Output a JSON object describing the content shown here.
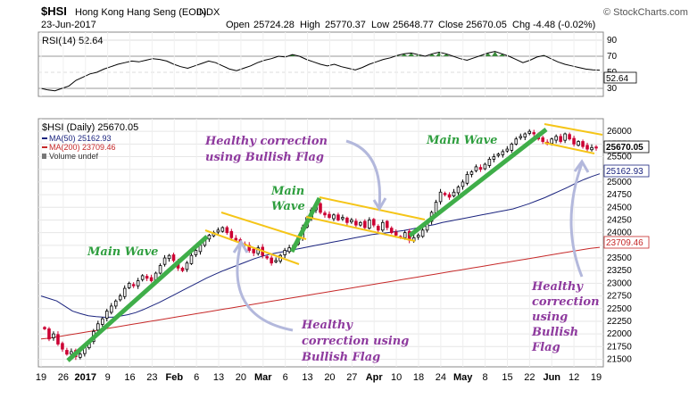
{
  "header": {
    "symbol": "$HSI",
    "name": "Hong Kong Hang Seng (EOD)",
    "exchange": "INDX",
    "source": "© StockCharts.com",
    "date": "23-Jun-2017",
    "open_label": "Open",
    "open": "25724.28",
    "high_label": "High",
    "high": "25770.37",
    "low_label": "Low",
    "low": "25648.77",
    "close_label": "Close",
    "close": "25670.05",
    "chg_label": "Chg",
    "chg": "-4.48 (-0.02%)"
  },
  "rsi_panel": {
    "legend": "RSI(14) 52.64",
    "value": 52.64,
    "value_label": "52.64",
    "ylim": [
      20,
      100
    ],
    "ticks": [
      30,
      50,
      70,
      90
    ],
    "tick_labels": [
      "30",
      "50",
      "70",
      "90"
    ],
    "values": [
      30,
      28,
      27,
      30,
      33,
      40,
      44,
      48,
      50,
      54,
      57,
      60,
      62,
      64,
      63,
      65,
      67,
      66,
      64,
      60,
      57,
      55,
      58,
      61,
      64,
      62,
      58,
      54,
      52,
      55,
      58,
      62,
      65,
      67,
      70,
      69,
      72,
      70,
      66,
      63,
      60,
      58,
      60,
      57,
      55,
      53,
      56,
      60,
      63,
      66,
      68,
      71,
      73,
      74,
      72,
      70,
      73,
      75,
      73,
      70,
      67,
      65,
      68,
      71,
      74,
      76,
      73,
      70,
      66,
      62,
      65,
      69,
      71,
      67,
      63,
      60,
      58,
      56,
      54,
      53,
      52.64
    ],
    "colors": {
      "line": "#000000",
      "overbought_fill": "#3a8a3a"
    }
  },
  "price_panel": {
    "legend_main": "$HSI (Daily) 25670.05",
    "legend_ma50": "MA(50) 25162.93",
    "legend_ma200": "MA(200) 23709.46",
    "legend_volume": "Volume undef",
    "ylim": [
      21350,
      26250
    ],
    "tick_values": [
      21500,
      21750,
      22000,
      22250,
      22500,
      22750,
      23000,
      23250,
      23500,
      23750,
      24000,
      24250,
      24500,
      24750,
      25000,
      25250,
      25500,
      25750,
      26000
    ],
    "tick_labels": [
      "21500",
      "21750",
      "22000",
      "22250",
      "22500",
      "22750",
      "23000",
      "23250",
      "23500",
      "23750",
      "24000",
      "24250",
      "24500",
      "24750",
      "25000",
      "25250",
      "25500",
      "25750",
      "26000"
    ],
    "last_close_label": "25670.05",
    "ma50_label": "25162.93",
    "ma200_label": "23709.46",
    "colors": {
      "up": "#000000",
      "down": "#cc0033",
      "ma50": "#1a237e",
      "ma200": "#c62828",
      "wave": "#3fae49",
      "flag": "#f5c518",
      "annotation_main": "#2e9e3e",
      "annotation_corr": "#8e3a9e",
      "arrow": "#b3b8dc"
    }
  },
  "x_axis": {
    "labels": [
      "19",
      "26",
      "2017",
      "9",
      "16",
      "23",
      "Feb",
      "6",
      "13",
      "20",
      "Mar",
      "6",
      "13",
      "20",
      "27",
      "Apr",
      "10",
      "18",
      "24",
      "May",
      "8",
      "15",
      "22",
      "Jun",
      "12",
      "19"
    ]
  },
  "annotations": {
    "main_wave_1": "Main Wave",
    "main_wave_2_line1": "Main",
    "main_wave_2_line2": "Wave",
    "main_wave_3": "Main Wave",
    "corr_top_line1": "Healthy correction",
    "corr_top_line2": "using Bullish Flag",
    "corr_bottom_line1": "Healthy",
    "corr_bottom_line2": "correction using",
    "corr_bottom_line3": "Bullish Flag",
    "corr_right_line1": "Healthy",
    "corr_right_line2": "correction",
    "corr_right_line3": "using",
    "corr_right_line4": "Bullish",
    "corr_right_line5": "Flag"
  },
  "chart_data": {
    "type": "candlestick",
    "closes": [
      22100,
      21900,
      22000,
      21800,
      21700,
      21600,
      21650,
      21550,
      21600,
      21750,
      21850,
      22050,
      22200,
      22300,
      22450,
      22550,
      22650,
      22750,
      22900,
      23000,
      22950,
      23050,
      23150,
      23100,
      23050,
      23200,
      23350,
      23500,
      23550,
      23450,
      23300,
      23250,
      23400,
      23550,
      23650,
      23750,
      23850,
      23950,
      24000,
      24050,
      24100,
      24000,
      23900,
      23850,
      23800,
      23750,
      23650,
      23600,
      23700,
      23550,
      23500,
      23400,
      23450,
      23550,
      23650,
      23700,
      23750,
      23900,
      24100,
      24300,
      24450,
      24550,
      24400,
      24350,
      24300,
      24350,
      24250,
      24300,
      24200,
      24250,
      24150,
      24200,
      24100,
      24250,
      24150,
      24050,
      24200,
      24100,
      24000,
      23950,
      23900,
      24000,
      23850,
      23900,
      23950,
      24050,
      24200,
      24400,
      24600,
      24800,
      24750,
      24700,
      24800,
      24900,
      25000,
      25150,
      25200,
      25300,
      25250,
      25350,
      25450,
      25500,
      25550,
      25600,
      25650,
      25750,
      25850,
      25900,
      25950,
      26000,
      25950,
      25850,
      25800,
      25750,
      25850,
      25900,
      25800,
      25950,
      25850,
      25750,
      25800,
      25700,
      25650,
      25680,
      25670.05
    ],
    "ma50": [
      22750,
      22700,
      22650,
      22550,
      22450,
      22400,
      22360,
      22340,
      22330,
      22330,
      22350,
      22380,
      22420,
      22480,
      22550,
      22620,
      22700,
      22780,
      22860,
      22940,
      23020,
      23100,
      23170,
      23240,
      23300,
      23360,
      23420,
      23480,
      23530,
      23570,
      23600,
      23630,
      23660,
      23690,
      23720,
      23750,
      23780,
      23810,
      23840,
      23870,
      23900,
      23930,
      23960,
      23980,
      24000,
      24020,
      24040,
      24070,
      24100,
      24130,
      24160,
      24200,
      24230,
      24260,
      24290,
      24320,
      24350,
      24380,
      24410,
      24440,
      24470,
      24520,
      24570,
      24630,
      24690,
      24760,
      24830,
      24900,
      24980,
      25050,
      25110,
      25162.93
    ],
    "ma200": [
      21900,
      21920,
      21950,
      21980,
      22010,
      22040,
      22070,
      22100,
      22130,
      22160,
      22190,
      22220,
      22250,
      22280,
      22310,
      22340,
      22370,
      22400,
      22430,
      22460,
      22490,
      22520,
      22550,
      22580,
      22610,
      22640,
      22670,
      22700,
      22730,
      22760,
      22790,
      22820,
      22850,
      22880,
      22910,
      22940,
      22970,
      23000,
      23030,
      23060,
      23090,
      23120,
      23150,
      23180,
      23210,
      23240,
      23270,
      23300,
      23330,
      23360,
      23390,
      23420,
      23450,
      23480,
      23510,
      23540,
      23570,
      23600,
      23630,
      23660,
      23690,
      23709.46
    ],
    "y_label": "",
    "ylim": [
      21350,
      26250
    ]
  }
}
